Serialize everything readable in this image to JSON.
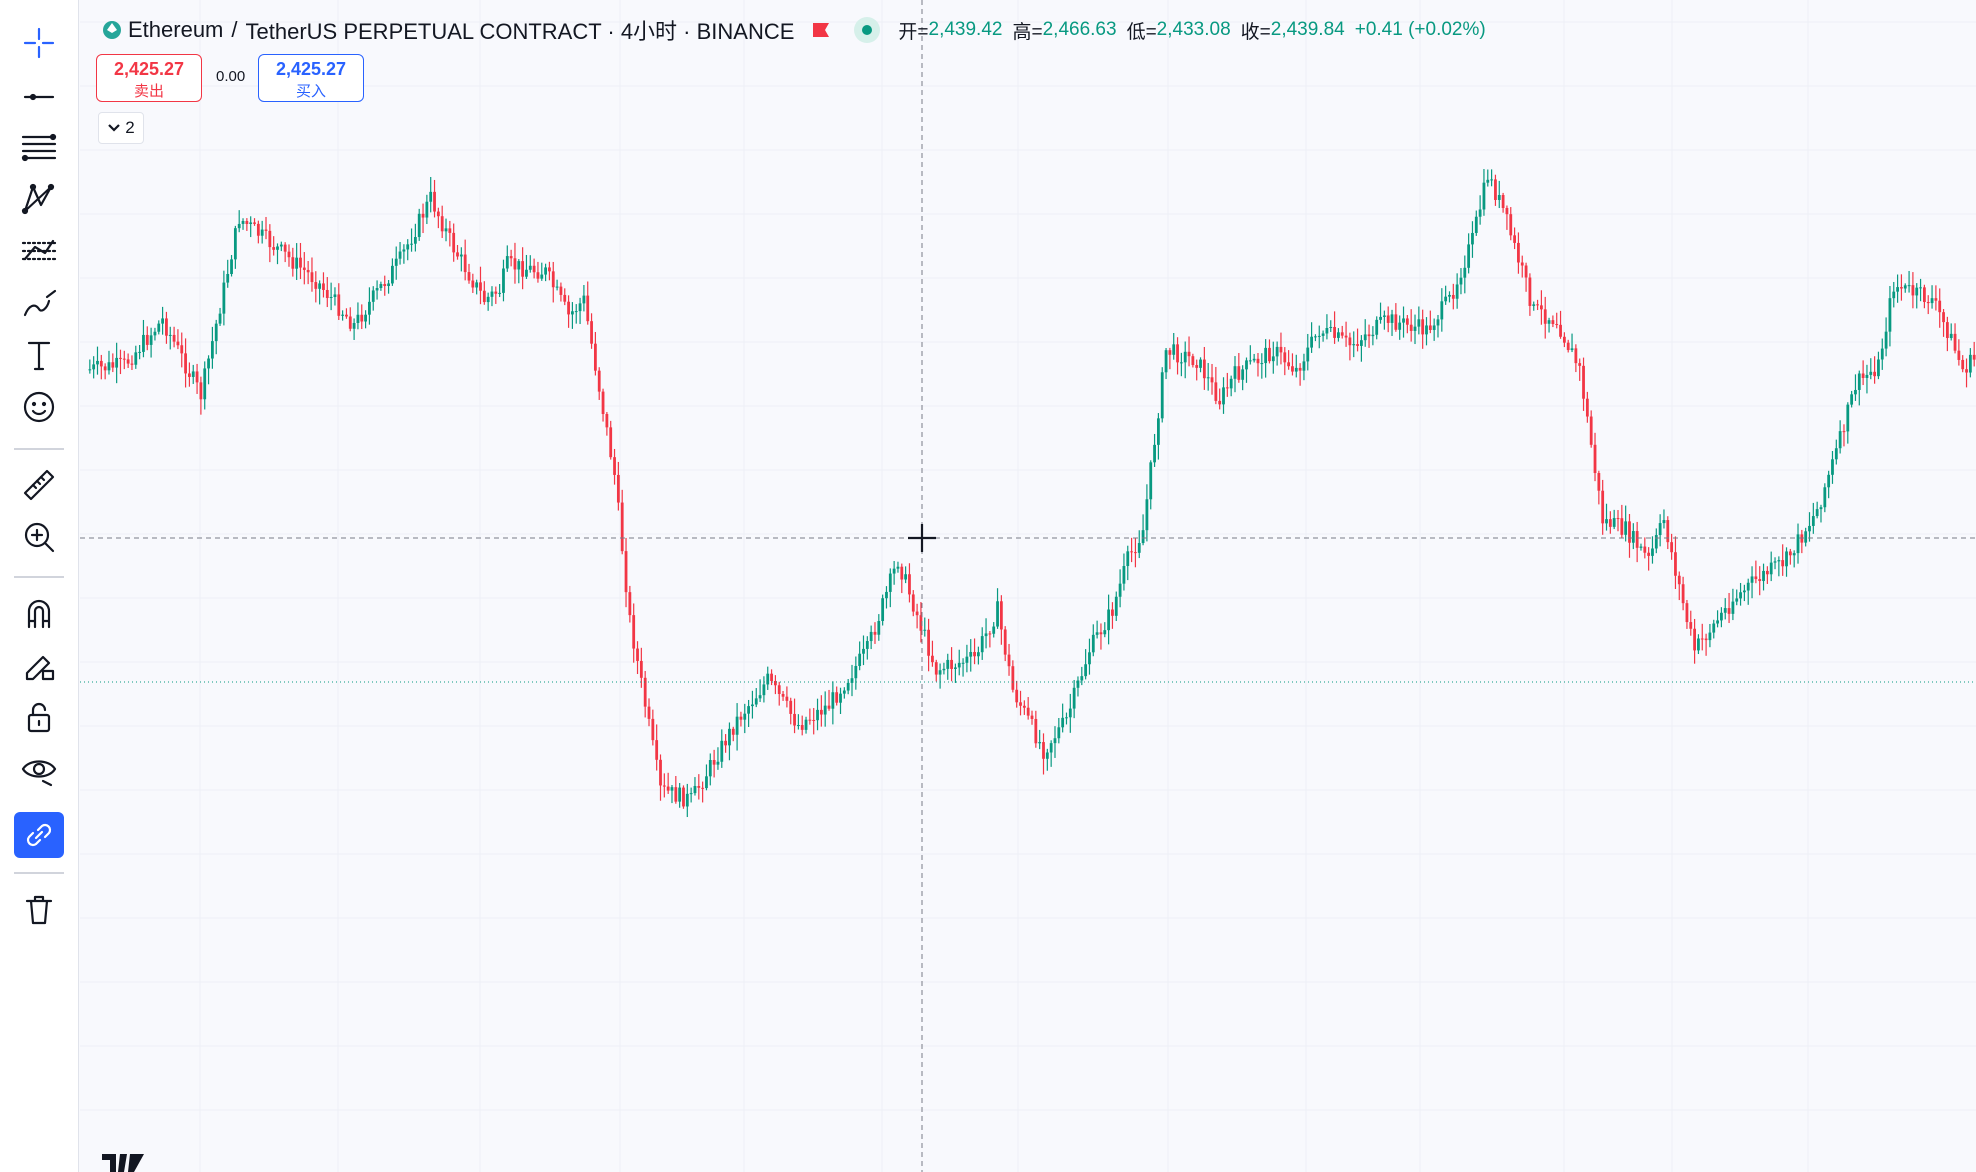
{
  "toolbar": {
    "tools": [
      {
        "name": "crosshair",
        "active": false
      },
      {
        "name": "trend-line",
        "active": false
      },
      {
        "name": "fib-levels",
        "active": false
      },
      {
        "name": "patterns",
        "active": false
      },
      {
        "name": "prediction",
        "active": false
      },
      {
        "name": "brush",
        "active": false
      },
      {
        "name": "text",
        "active": false
      },
      {
        "name": "emoji",
        "active": false
      },
      {
        "name": "ruler",
        "active": false
      },
      {
        "name": "zoom-in",
        "active": false
      },
      {
        "name": "magnet",
        "active": false
      },
      {
        "name": "stay-in-drawing-mode",
        "active": false
      },
      {
        "name": "lock",
        "active": false
      },
      {
        "name": "hide-drawings",
        "active": false
      },
      {
        "name": "sync-drawings",
        "active": true
      },
      {
        "name": "delete",
        "active": false
      }
    ]
  },
  "legend": {
    "base": "Ethereum",
    "separator": "/",
    "symbol": "TetherUS PERPETUAL CONTRACT · 4小时 · BINANCE",
    "open_label": "开=",
    "open": "2,439.42",
    "high_label": "高=",
    "high": "2,466.63",
    "low_label": "低=",
    "low": "2,433.08",
    "close_label": "收=",
    "close": "2,439.84",
    "change": "+0.41 (+0.02%)"
  },
  "trade": {
    "sell_price": "2,425.27",
    "sell_label": "卖出",
    "spread": "0.00",
    "buy_price": "2,425.27",
    "buy_label": "买入"
  },
  "indicators_toggle": "2",
  "colors": {
    "up": "#089981",
    "down": "#f23645",
    "accent": "#2962ff",
    "background": "#f8f9fd"
  },
  "chart_data": {
    "type": "candlestick",
    "interval": "4h",
    "series": [
      {
        "name": "candles",
        "ohlc_relative": "shape-approximation"
      }
    ]
  }
}
